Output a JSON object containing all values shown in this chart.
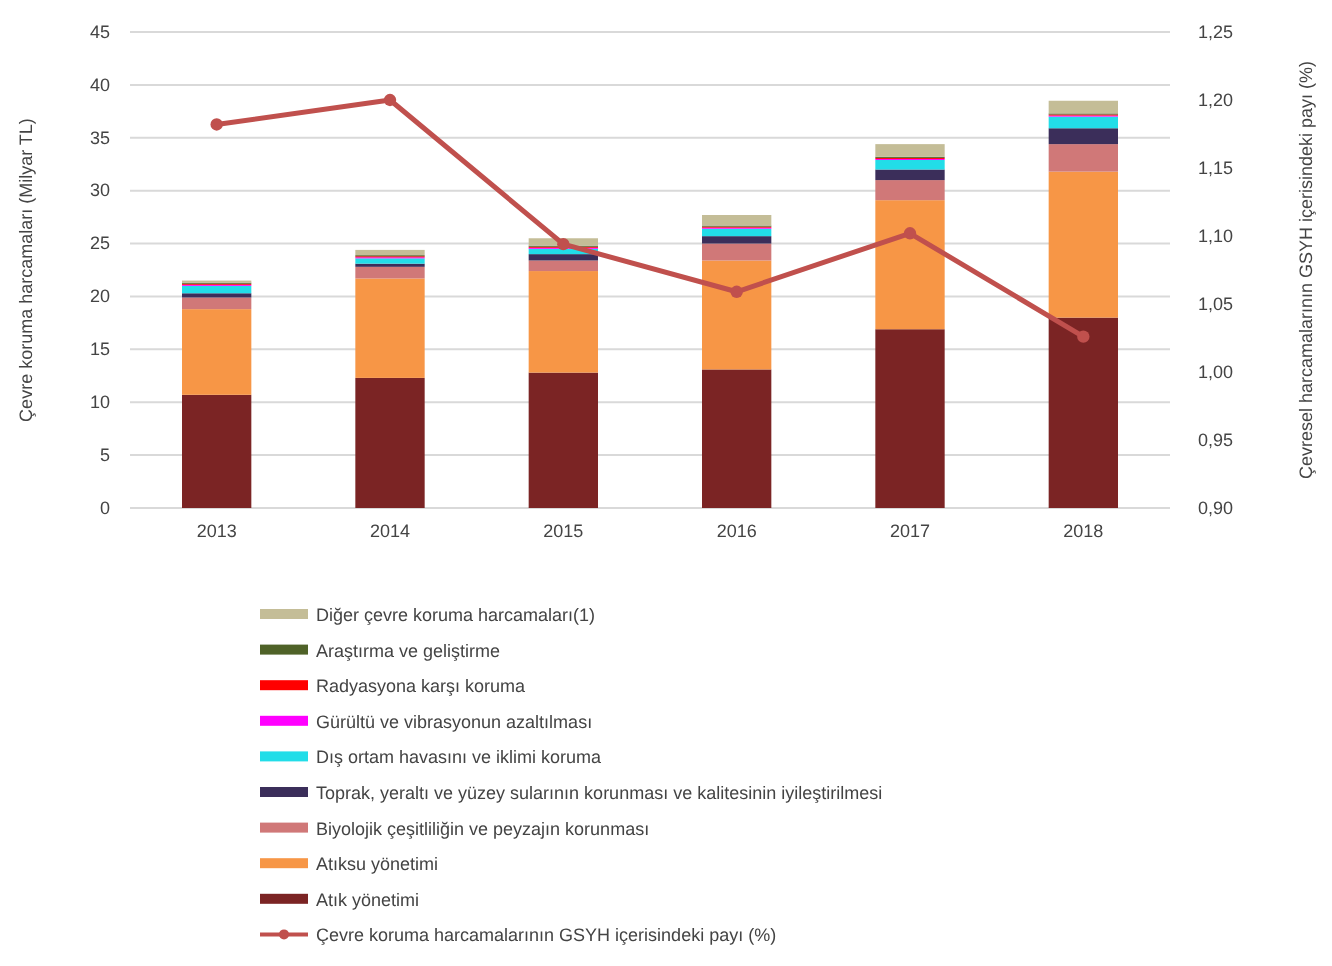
{
  "chart_data": {
    "type": "bar",
    "stacked": true,
    "categories": [
      "2013",
      "2014",
      "2015",
      "2016",
      "2017",
      "2018"
    ],
    "ylabel": "Çevre koruma harcamaları (Milyar TL)",
    "y2label": "Çevresel harcamalarının GSYH içerisindeki payı (%)",
    "ylim": [
      0,
      45
    ],
    "yticks": [
      0,
      5,
      10,
      15,
      20,
      25,
      30,
      35,
      40,
      45
    ],
    "y2lim": [
      0.9,
      1.25
    ],
    "y2ticks": [
      {
        "value": 0.9,
        "label": "0,90"
      },
      {
        "value": 0.95,
        "label": "0,95"
      },
      {
        "value": 1,
        "label": "1,00"
      },
      {
        "value": 1.05,
        "label": "1,05"
      },
      {
        "value": 1.1,
        "label": "1,10"
      },
      {
        "value": 1.15,
        "label": "1,15"
      },
      {
        "value": 1.2,
        "label": "1,20"
      },
      {
        "value": 1.25,
        "label": "1,25"
      }
    ],
    "grid": "y",
    "legend": "bottom",
    "series": [
      {
        "name": "Atık yönetimi",
        "color": "#7b2424",
        "values": [
          10.7,
          12.3,
          12.8,
          13.1,
          16.9,
          18.0
        ]
      },
      {
        "name": "Atıksu yönetimi",
        "color": "#f79646",
        "values": [
          8.1,
          9.4,
          9.6,
          10.3,
          12.2,
          13.8
        ]
      },
      {
        "name": "Biyolojik çeşitliliğin ve peyzajın korunması",
        "color": "#d07878",
        "values": [
          1.1,
          1.1,
          1.0,
          1.6,
          1.9,
          2.6
        ]
      },
      {
        "name": "Toprak, yeraltı ve yüzey sularının korunması ve kalitesinin iyileştirilmesi",
        "color": "#3b2e5a",
        "values": [
          0.4,
          0.3,
          0.6,
          0.7,
          1.0,
          1.5
        ]
      },
      {
        "name": "Dış ortam havasını ve iklimi koruma",
        "color": "#22dde8",
        "values": [
          0.7,
          0.5,
          0.5,
          0.7,
          0.9,
          1.1
        ]
      },
      {
        "name": "Gürültü ve vibrasyonun azaltılması",
        "color": "#ff00ff",
        "values": [
          0.1,
          0.1,
          0.1,
          0.1,
          0.1,
          0.1
        ]
      },
      {
        "name": "Radyasyona karşı koruma",
        "color": "#ff0000",
        "values": [
          0.1,
          0.1,
          0.1,
          0.1,
          0.1,
          0.1
        ]
      },
      {
        "name": "Araştırma ve geliştirme",
        "color": "#4f6228",
        "values": [
          0.1,
          0.1,
          0.1,
          0.1,
          0.1,
          0.1
        ]
      },
      {
        "name": "Diğer çevre koruma harcamaları(1)",
        "color": "#c4bd97",
        "values": [
          0.2,
          0.5,
          0.7,
          1.0,
          1.2,
          1.2
        ]
      },
      {
        "name": "Çevre koruma harcamalarının GSYH içerisindeki payı (%)",
        "type": "line",
        "axis": "y2",
        "marker": "circle",
        "color": "#c0504d",
        "values": [
          1.182,
          1.2,
          1.094,
          1.059,
          1.102,
          1.026
        ]
      }
    ]
  }
}
